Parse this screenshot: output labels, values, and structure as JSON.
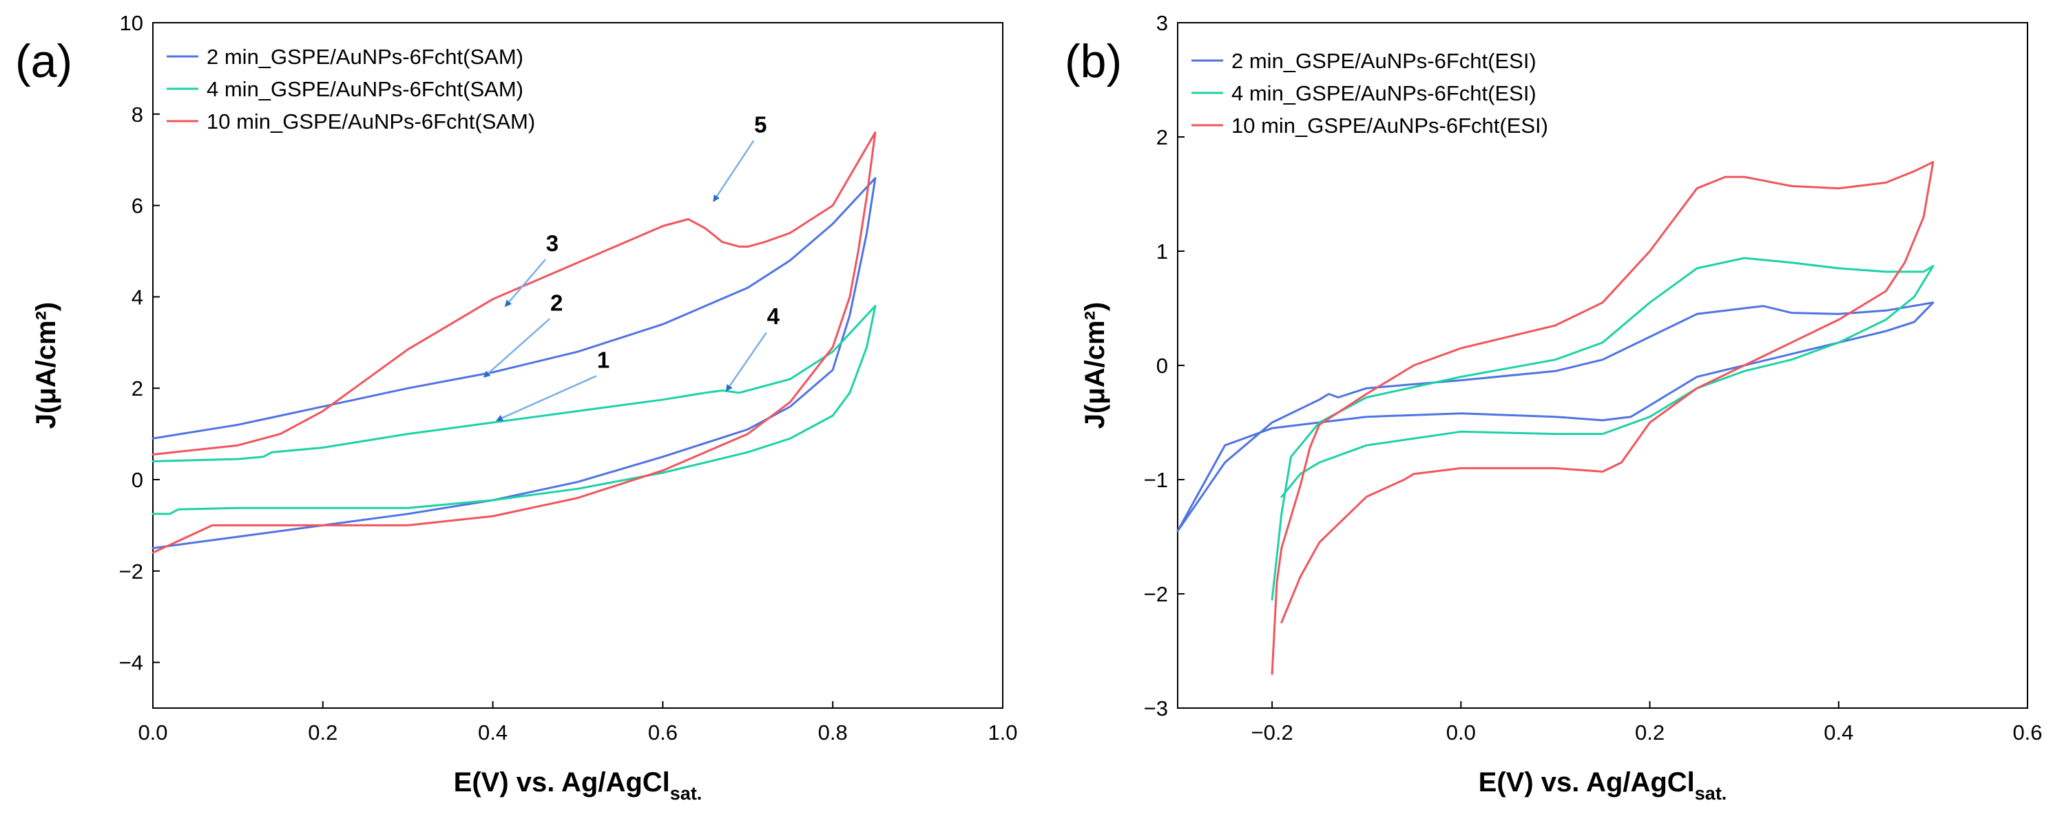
{
  "chart_data": [
    {
      "type": "line",
      "panel_label": "(a)",
      "xlabel": "E(V) vs. Ag/AgCl",
      "xlabel_sub": "sat.",
      "ylabel": "J(μA/cm²)",
      "xlim": [
        0.0,
        1.0
      ],
      "ylim": [
        -5,
        10
      ],
      "xticks": [
        0.0,
        0.2,
        0.4,
        0.6,
        0.8,
        1.0
      ],
      "xtick_labels": [
        "0.0",
        "0.2",
        "0.4",
        "0.6",
        "0.8",
        "1.0"
      ],
      "yticks": [
        -4,
        -2,
        0,
        2,
        4,
        6,
        8,
        10
      ],
      "ytick_labels": [
        "−4",
        "−2",
        "0",
        "2",
        "4",
        "6",
        "8",
        "10"
      ],
      "legend_position": "top-left",
      "series": [
        {
          "name": "2 min_GSPE/AuNPs-6Fcht(SAM)",
          "color": "#4f73e3",
          "x": [
            0.0,
            0.1,
            0.2,
            0.3,
            0.4,
            0.5,
            0.6,
            0.7,
            0.75,
            0.8,
            0.85,
            0.84,
            0.82,
            0.8,
            0.75,
            0.7,
            0.6,
            0.5,
            0.4,
            0.3,
            0.2,
            0.1,
            0.0
          ],
          "y": [
            0.9,
            1.2,
            1.6,
            2.0,
            2.35,
            2.8,
            3.4,
            4.2,
            4.8,
            5.6,
            6.6,
            5.4,
            3.6,
            2.4,
            1.6,
            1.1,
            0.5,
            -0.05,
            -0.45,
            -0.75,
            -1.0,
            -1.25,
            -1.5
          ]
        },
        {
          "name": "4 min_GSPE/AuNPs-6Fcht(SAM)",
          "color": "#1ed1a6",
          "x": [
            0.0,
            0.1,
            0.13,
            0.14,
            0.2,
            0.3,
            0.4,
            0.5,
            0.6,
            0.65,
            0.67,
            0.69,
            0.75,
            0.8,
            0.85,
            0.84,
            0.82,
            0.8,
            0.75,
            0.7,
            0.6,
            0.5,
            0.4,
            0.3,
            0.2,
            0.1,
            0.03,
            0.02,
            0.0
          ],
          "y": [
            0.4,
            0.45,
            0.5,
            0.6,
            0.7,
            1.0,
            1.25,
            1.5,
            1.75,
            1.9,
            1.95,
            1.9,
            2.2,
            2.8,
            3.8,
            2.9,
            1.9,
            1.4,
            0.9,
            0.6,
            0.15,
            -0.2,
            -0.45,
            -0.62,
            -0.62,
            -0.62,
            -0.65,
            -0.75,
            -0.75
          ]
        },
        {
          "name": "10 min_GSPE/AuNPs-6Fcht(SAM)",
          "color": "#f0555d",
          "x": [
            0.0,
            0.1,
            0.15,
            0.2,
            0.3,
            0.4,
            0.5,
            0.6,
            0.63,
            0.65,
            0.67,
            0.69,
            0.7,
            0.72,
            0.75,
            0.8,
            0.85,
            0.84,
            0.83,
            0.82,
            0.8,
            0.75,
            0.7,
            0.6,
            0.5,
            0.4,
            0.3,
            0.2,
            0.07,
            0.0
          ],
          "y": [
            0.55,
            0.75,
            1.0,
            1.5,
            2.85,
            3.95,
            4.75,
            5.55,
            5.7,
            5.5,
            5.2,
            5.1,
            5.1,
            5.2,
            5.4,
            6.0,
            7.6,
            6.2,
            5.0,
            4.0,
            2.9,
            1.7,
            1.0,
            0.2,
            -0.4,
            -0.8,
            -1.0,
            -1.0,
            -1.0,
            -1.6
          ]
        }
      ],
      "annotations": [
        {
          "label": "1",
          "text_x": 0.53,
          "text_y": 2.45,
          "arrow_x": 0.405,
          "arrow_y": 1.3
        },
        {
          "label": "2",
          "text_x": 0.475,
          "text_y": 3.7,
          "arrow_x": 0.39,
          "arrow_y": 2.25
        },
        {
          "label": "3",
          "text_x": 0.47,
          "text_y": 5.0,
          "arrow_x": 0.415,
          "arrow_y": 3.8
        },
        {
          "label": "4",
          "text_x": 0.73,
          "text_y": 3.4,
          "arrow_x": 0.675,
          "arrow_y": 1.95
        },
        {
          "label": "5",
          "text_x": 0.715,
          "text_y": 7.6,
          "arrow_x": 0.66,
          "arrow_y": 6.1
        }
      ]
    },
    {
      "type": "line",
      "panel_label": "(b)",
      "xlabel": "E(V) vs. Ag/AgCl",
      "xlabel_sub": "sat.",
      "ylabel": "J(μA/cm²)",
      "xlim": [
        -0.3,
        0.6
      ],
      "ylim": [
        -3,
        3
      ],
      "xticks": [
        -0.2,
        0.0,
        0.2,
        0.4,
        0.6
      ],
      "xtick_labels": [
        "−0.2",
        "0.0",
        "0.2",
        "0.4",
        "0.6"
      ],
      "yticks": [
        -3,
        -2,
        -1,
        0,
        1,
        2,
        3
      ],
      "ytick_labels": [
        "−3",
        "−2",
        "−1",
        "0",
        "1",
        "2",
        "3"
      ],
      "legend_position": "top-left",
      "series": [
        {
          "name": "2 min_GSPE/AuNPs-6Fcht(ESI)",
          "color": "#4f73e3",
          "x": [
            -0.3,
            -0.25,
            -0.2,
            -0.15,
            -0.14,
            -0.13,
            -0.1,
            0.0,
            0.1,
            0.15,
            0.2,
            0.25,
            0.3,
            0.32,
            0.35,
            0.4,
            0.45,
            0.5,
            0.48,
            0.45,
            0.4,
            0.35,
            0.3,
            0.25,
            0.2,
            0.18,
            0.15,
            0.1,
            0.0,
            -0.1,
            -0.2,
            -0.25,
            -0.3
          ],
          "y": [
            -1.45,
            -0.85,
            -0.5,
            -0.3,
            -0.25,
            -0.28,
            -0.2,
            -0.13,
            -0.05,
            0.05,
            0.25,
            0.45,
            0.5,
            0.52,
            0.46,
            0.45,
            0.48,
            0.55,
            0.38,
            0.3,
            0.2,
            0.1,
            0.0,
            -0.1,
            -0.35,
            -0.45,
            -0.48,
            -0.45,
            -0.42,
            -0.45,
            -0.55,
            -0.7,
            -1.45
          ]
        },
        {
          "name": "4 min_GSPE/AuNPs-6Fcht(ESI)",
          "color": "#1ed1a6",
          "x": [
            -0.2,
            -0.19,
            -0.18,
            -0.16,
            -0.15,
            -0.1,
            0.0,
            0.1,
            0.15,
            0.2,
            0.25,
            0.3,
            0.35,
            0.4,
            0.45,
            0.49,
            0.5,
            0.48,
            0.45,
            0.4,
            0.35,
            0.3,
            0.25,
            0.2,
            0.15,
            0.1,
            0.0,
            -0.1,
            -0.15,
            -0.17,
            -0.19
          ],
          "y": [
            -2.05,
            -1.3,
            -0.8,
            -0.6,
            -0.5,
            -0.28,
            -0.1,
            0.05,
            0.2,
            0.55,
            0.85,
            0.94,
            0.9,
            0.85,
            0.82,
            0.82,
            0.87,
            0.6,
            0.4,
            0.2,
            0.05,
            -0.05,
            -0.2,
            -0.45,
            -0.6,
            -0.6,
            -0.58,
            -0.7,
            -0.85,
            -0.95,
            -1.15
          ]
        },
        {
          "name": "10 min_GSPE/AuNPs-6Fcht(ESI)",
          "color": "#f0555d",
          "x": [
            -0.2,
            -0.195,
            -0.19,
            -0.17,
            -0.16,
            -0.15,
            -0.1,
            -0.05,
            0.0,
            0.1,
            0.15,
            0.2,
            0.25,
            0.28,
            0.3,
            0.35,
            0.4,
            0.45,
            0.48,
            0.5,
            0.49,
            0.47,
            0.45,
            0.4,
            0.35,
            0.3,
            0.25,
            0.2,
            0.17,
            0.15,
            0.1,
            0.0,
            -0.05,
            -0.06,
            -0.1,
            -0.15,
            -0.17,
            -0.19
          ],
          "y": [
            -2.7,
            -1.9,
            -1.6,
            -1.05,
            -0.72,
            -0.52,
            -0.25,
            0.0,
            0.15,
            0.35,
            0.55,
            1.0,
            1.55,
            1.65,
            1.65,
            1.57,
            1.55,
            1.6,
            1.7,
            1.78,
            1.3,
            0.9,
            0.65,
            0.4,
            0.2,
            0.0,
            -0.2,
            -0.5,
            -0.85,
            -0.93,
            -0.9,
            -0.9,
            -0.95,
            -1.0,
            -1.15,
            -1.55,
            -1.85,
            -2.25
          ]
        }
      ],
      "annotations": []
    }
  ]
}
